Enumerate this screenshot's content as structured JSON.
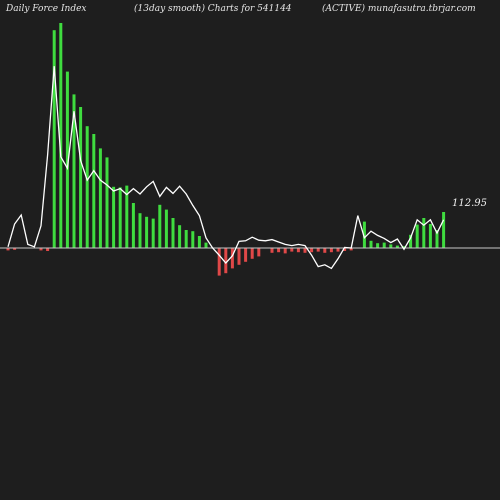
{
  "header": {
    "left": "Daily Force  Index",
    "middle": "(13day smooth) Charts for 541144",
    "right": "(ACTIVE) munafasutra.tbrjar.com"
  },
  "colors": {
    "background": "#1e1e1e",
    "positive_bar": "#3fdc3f",
    "negative_bar": "#e04848",
    "line": "#ffffff",
    "zero_line": "#c8c8c8"
  },
  "chart_data": {
    "type": "bar",
    "ylim": [
      -110,
      420
    ],
    "bars": [
      -4,
      -3,
      0,
      0,
      0,
      -4,
      -5,
      363,
      375,
      294,
      256,
      235,
      203,
      190,
      166,
      151,
      102,
      101,
      104,
      75,
      58,
      52,
      49,
      72,
      64,
      50,
      38,
      30,
      28,
      20,
      9,
      0,
      -46,
      -42,
      -34,
      -28,
      -23,
      -18,
      -14,
      0,
      -8,
      -7,
      -9,
      -6,
      -7,
      -8,
      -7,
      -6,
      -8,
      -7,
      -6,
      -5,
      -4,
      0,
      44,
      12,
      8,
      9,
      6,
      4,
      3,
      22,
      39,
      50,
      40,
      30,
      60
    ],
    "line_values": [
      2,
      40,
      55,
      6,
      2,
      37,
      155,
      303,
      152,
      133,
      228,
      146,
      113,
      129,
      113,
      105,
      95,
      99,
      89,
      99,
      90,
      102,
      111,
      86,
      101,
      91,
      103,
      90,
      71,
      54,
      17,
      0,
      -12,
      -25,
      -13,
      11,
      12,
      18,
      13,
      12,
      14,
      10,
      6,
      4,
      6,
      4,
      -12,
      -31,
      -28,
      -34,
      -18,
      1,
      0,
      54,
      17,
      28,
      21,
      16,
      9,
      15,
      -2,
      17,
      47,
      38,
      47,
      25,
      47
    ],
    "last_value_label": "112.95"
  }
}
